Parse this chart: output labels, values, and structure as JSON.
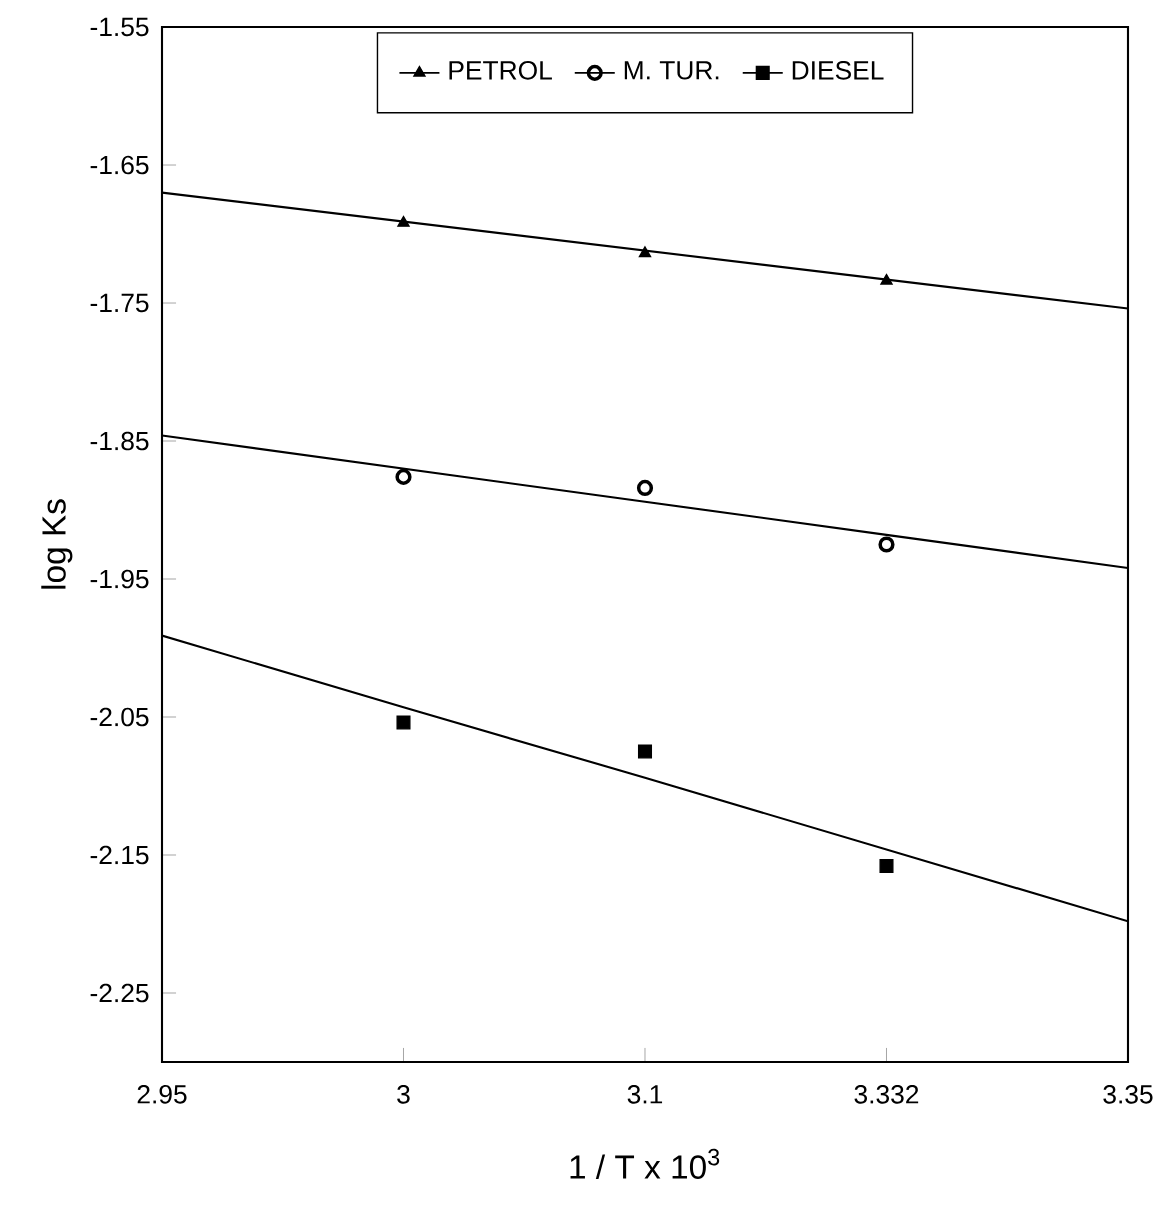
{
  "chart_data": {
    "type": "scatter",
    "xlabel": "1 / T x 10$^{3}$",
    "ylabel": "log Ks",
    "categories": [
      "2.95",
      "3",
      "3.1",
      "3.332",
      "3.35"
    ],
    "ylim": [
      -2.3,
      -1.55
    ],
    "yticks": [
      -1.55,
      -1.65,
      -1.75,
      -1.85,
      -1.95,
      -2.05,
      -2.15,
      -2.25
    ],
    "legend": "top",
    "grid": false,
    "series": [
      {
        "name": "PETROL",
        "marker": "triangle",
        "color": "#000000",
        "values": [
          null,
          -1.692,
          -1.714,
          -1.734,
          null
        ]
      },
      {
        "name": "M. TUR.",
        "marker": "circle",
        "color": "#000000",
        "values": [
          null,
          -1.876,
          -1.884,
          -1.925,
          null
        ]
      },
      {
        "name": "DIESEL",
        "marker": "square",
        "color": "#000000",
        "values": [
          null,
          -2.054,
          -2.075,
          -2.158,
          null
        ]
      },
      {
        "type": "line",
        "marker": "none",
        "color": "#000000",
        "values": [
          -1.67,
          -1.691,
          -1.712,
          -1.733,
          -1.754
        ]
      },
      {
        "type": "line",
        "marker": "none",
        "color": "#000000",
        "values": [
          -1.846,
          -1.87,
          -1.894,
          -1.918,
          -1.942
        ]
      },
      {
        "type": "line",
        "marker": "none",
        "color": "#000000",
        "values": [
          -1.991,
          -2.043,
          -2.094,
          -2.146,
          -2.198
        ]
      }
    ]
  }
}
